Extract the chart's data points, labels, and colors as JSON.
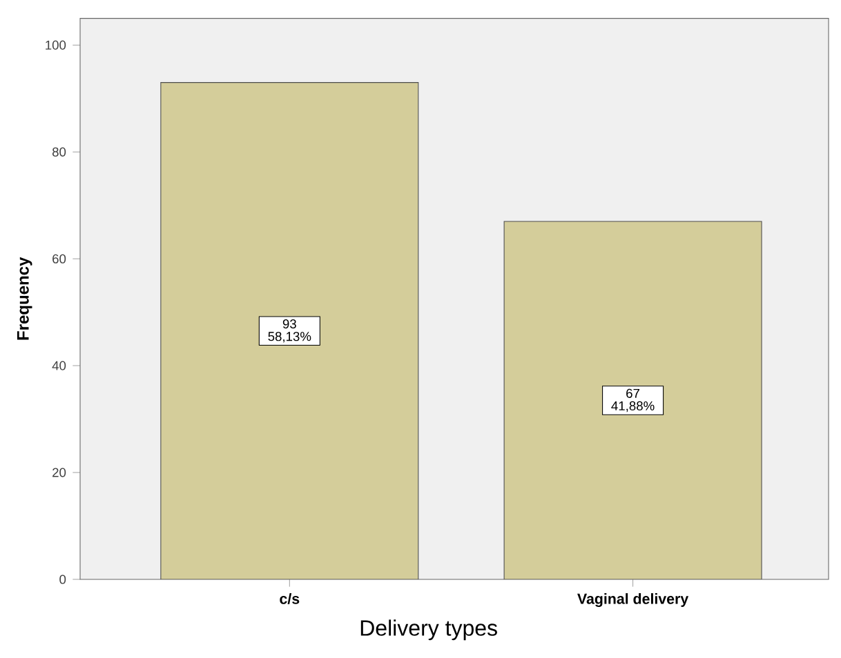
{
  "chart_data": {
    "type": "bar",
    "xlabel": "Delivery types",
    "ylabel": "Frequency",
    "categories": [
      "c/s",
      "Vaginal delivery"
    ],
    "values": [
      93,
      67
    ],
    "value_labels": [
      "93 58,13%",
      "67 41,88%"
    ],
    "color": "#d4cd9a",
    "ylim": [
      0,
      105
    ],
    "yticks": [
      0,
      20,
      40,
      60,
      80,
      100
    ],
    "grid": false
  }
}
